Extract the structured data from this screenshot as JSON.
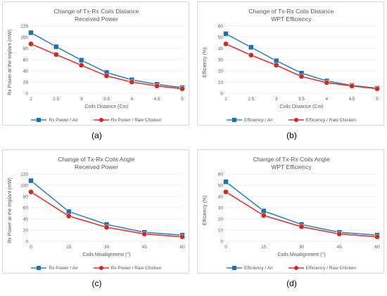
{
  "colors": {
    "blue": "#2e86c1",
    "blue_marker": "#1f6fb2",
    "red": "#e8332a",
    "red_marker": "#d9261c",
    "grid": "#d9d9d9",
    "axis_text": "#595959"
  },
  "legend_labels": {
    "blue_rx": "Rx Power / Air",
    "red_rx": "Rx Power / Raw Chicken",
    "blue_eff": "Efficiency / Air",
    "red_eff": "Efficiency / Raw Chicken"
  },
  "chart_data": [
    {
      "id": "a",
      "type": "line",
      "caption": "(a)",
      "title_line1": "Change of Tx-Rx Coils Distance",
      "title_line2": "Received Power",
      "xlabel": "Coils Distance (Cm)",
      "ylabel": "Rx Power at the Implant (mW)",
      "categories": [
        "2",
        "2.5",
        "3",
        "3.5",
        "4",
        "4.5",
        "5"
      ],
      "ylim": [
        0,
        120
      ],
      "yticks": [
        "0",
        "20",
        "40",
        "60",
        "80",
        "100",
        "120"
      ],
      "grid": true,
      "legend_position": "bottom",
      "series": [
        {
          "name": "Rx Power / Air",
          "values": [
            108,
            83,
            59,
            37,
            24,
            16,
            10
          ]
        },
        {
          "name": "Rx Power / Raw Chicken",
          "values": [
            88,
            69,
            50,
            31,
            20,
            13,
            8
          ]
        }
      ]
    },
    {
      "id": "b",
      "type": "line",
      "caption": "(b)",
      "title_line1": "Change of Tx-Rx Coils Distance",
      "title_line2": "WPT Efficiency",
      "xlabel": "Coils Distance (Cm)",
      "ylabel": "Efficiency (%)",
      "categories": [
        "2",
        "2.5",
        "3",
        "3.5",
        "4",
        "4.5",
        "5"
      ],
      "ylim": [
        0,
        60
      ],
      "yticks": [
        "0",
        "10",
        "20",
        "30",
        "40",
        "50",
        "60"
      ],
      "grid": true,
      "legend_position": "bottom",
      "series": [
        {
          "name": "Efficiency / Air",
          "values": [
            53,
            41,
            29,
            18,
            11,
            7,
            4.5
          ]
        },
        {
          "name": "Efficiency / Raw Chicken",
          "values": [
            44,
            34,
            25,
            15,
            9.5,
            6.5,
            4
          ]
        }
      ]
    },
    {
      "id": "c",
      "type": "line",
      "caption": "(c)",
      "title_line1": "Change of Tx-Rx Coils Angle",
      "title_line2": "Received Power",
      "xlabel": "Coils Misalignment (°)",
      "ylabel": "Rx Power at the Implant (mW)",
      "categories": [
        "0",
        "15",
        "30",
        "45",
        "60"
      ],
      "ylim": [
        0,
        120
      ],
      "yticks": [
        "0",
        "20",
        "40",
        "60",
        "80",
        "100",
        "120"
      ],
      "grid": true,
      "legend_position": "bottom",
      "series": [
        {
          "name": "Rx Power / Air",
          "values": [
            108,
            53,
            30,
            16,
            11
          ]
        },
        {
          "name": "Rx Power / Raw Chicken",
          "values": [
            88,
            45,
            25,
            13,
            8
          ]
        }
      ]
    },
    {
      "id": "d",
      "type": "line",
      "caption": "(d)",
      "title_line1": "Change of Tx-Rx Coils Angle",
      "title_line2": "WPT Efficiency",
      "xlabel": "Coils Misalignment (°)",
      "ylabel": "Efficiency (%)",
      "categories": [
        "0",
        "15",
        "30",
        "45",
        "60"
      ],
      "ylim": [
        0,
        60
      ],
      "yticks": [
        "0",
        "10",
        "20",
        "30",
        "40",
        "50",
        "60"
      ],
      "grid": true,
      "legend_position": "bottom",
      "series": [
        {
          "name": "Efficiency / Air",
          "values": [
            53,
            27,
            15,
            8,
            5.5
          ]
        },
        {
          "name": "Efficiency / Raw Chicken",
          "values": [
            44,
            23,
            13,
            6.5,
            4
          ]
        }
      ]
    }
  ]
}
